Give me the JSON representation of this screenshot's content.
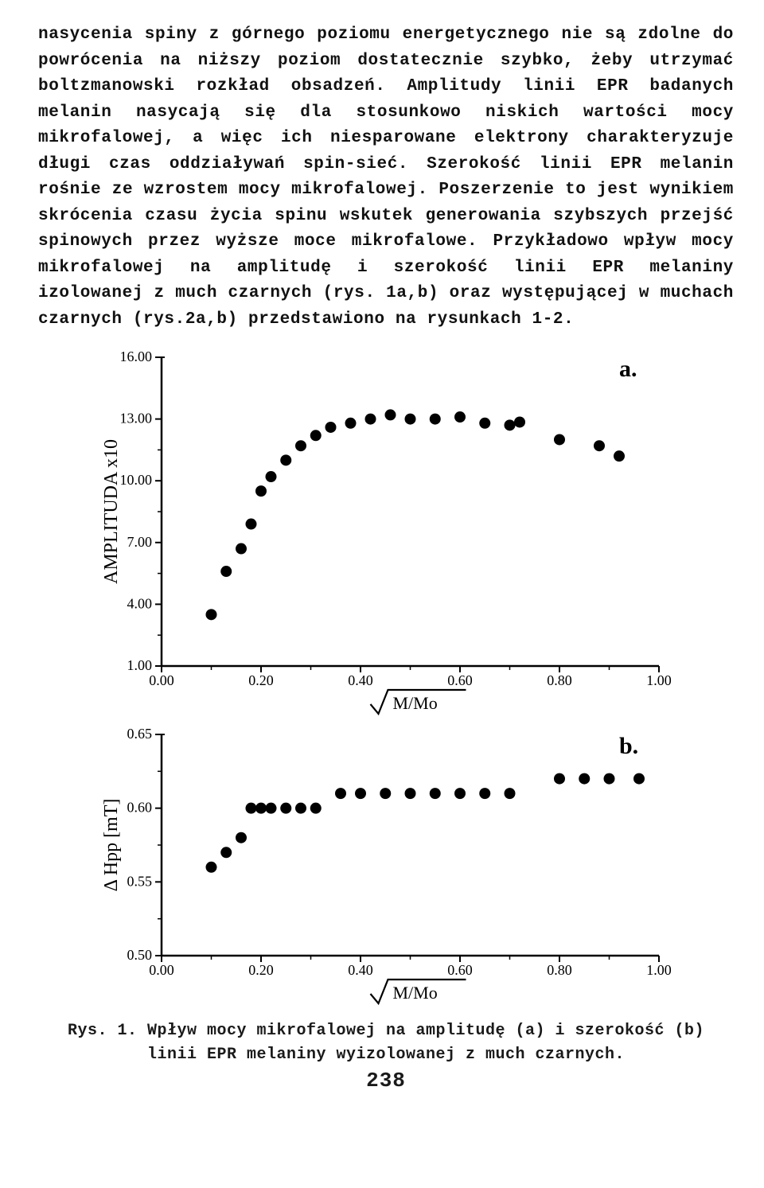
{
  "paragraph": "nasycenia spiny z górnego poziomu energetycznego nie są zdolne do powrócenia na niższy poziom dostatecznie szybko, żeby utrzymać boltzmanowski rozkład obsadzeń. Amplitudy linii EPR badanych melanin nasycają się dla stosunkowo niskich wartości mocy mikrofalowej, a więc ich niesparowane elektrony charakteryzuje długi czas oddziaływań spin-sieć. Szerokość linii EPR melanin rośnie ze wzrostem mocy mikrofalowej. Poszerzenie to jest wynikiem skrócenia czasu życia spinu wskutek generowania szybszych przejść spinowych przez wyższe moce mikrofalowe. Przykładowo wpływ mocy mikrofalowej na amplitudę i szerokość linii EPR melaniny izolowanej z much czarnych (rys. 1a,b) oraz występującej w muchach czarnych (rys.2a,b) przedstawiono na rysunkach 1-2.",
  "caption_line1": "Rys. 1. Wpływ mocy mikrofalowej na amplitudę (a) i szerokość (b)",
  "caption_line2": "linii EPR melaniny wyizolowanej z much czarnych.",
  "page_number": "238",
  "chart_a": {
    "type": "scatter",
    "panel_label": "a.",
    "xlabel_tex": "\\sqrt{M/Mo}",
    "ylabel": "AMPLITUDA x10",
    "xlim": [
      0.0,
      1.0
    ],
    "ylim": [
      1.0,
      16.0
    ],
    "xticks": [
      0.0,
      0.2,
      0.4,
      0.6,
      0.8,
      1.0
    ],
    "yticks": [
      1.0,
      4.0,
      7.0,
      10.0,
      13.0
    ],
    "ytick_top_label": "16.00",
    "xtick_labels": [
      "0.00",
      "0.20",
      "0.40",
      "0.60",
      "0.80",
      "1.00"
    ],
    "ytick_labels": [
      "1.00",
      "4.00",
      "7.00",
      "10.00",
      "13.00",
      "16.00"
    ],
    "marker_color": "#000000",
    "marker_radius": 7,
    "axis_color": "#000000",
    "axis_width": 2.5,
    "background_color": "#ffffff",
    "font_family": "serif",
    "tick_fontsize": 18,
    "label_fontsize": 24,
    "panel_label_fontsize": 30,
    "data": [
      {
        "x": 0.1,
        "y": 3.5
      },
      {
        "x": 0.13,
        "y": 5.6
      },
      {
        "x": 0.16,
        "y": 6.7
      },
      {
        "x": 0.18,
        "y": 7.9
      },
      {
        "x": 0.2,
        "y": 9.5
      },
      {
        "x": 0.22,
        "y": 10.2
      },
      {
        "x": 0.25,
        "y": 11.0
      },
      {
        "x": 0.28,
        "y": 11.7
      },
      {
        "x": 0.31,
        "y": 12.2
      },
      {
        "x": 0.34,
        "y": 12.6
      },
      {
        "x": 0.38,
        "y": 12.8
      },
      {
        "x": 0.42,
        "y": 13.0
      },
      {
        "x": 0.46,
        "y": 13.2
      },
      {
        "x": 0.5,
        "y": 13.0
      },
      {
        "x": 0.55,
        "y": 13.0
      },
      {
        "x": 0.6,
        "y": 13.1
      },
      {
        "x": 0.65,
        "y": 12.8
      },
      {
        "x": 0.7,
        "y": 12.7
      },
      {
        "x": 0.72,
        "y": 12.85
      },
      {
        "x": 0.8,
        "y": 12.0
      },
      {
        "x": 0.88,
        "y": 11.7
      },
      {
        "x": 0.92,
        "y": 11.2
      }
    ]
  },
  "chart_b": {
    "type": "scatter",
    "panel_label": "b.",
    "xlabel_tex": "\\sqrt{M/Mo}",
    "ylabel": "Δ Hpp [mT]",
    "xlim": [
      0.0,
      1.0
    ],
    "ylim": [
      0.5,
      0.65
    ],
    "xticks": [
      0.0,
      0.2,
      0.4,
      0.6,
      0.8,
      1.0
    ],
    "yticks": [
      0.5,
      0.55,
      0.6,
      0.65
    ],
    "xtick_labels": [
      "0.00",
      "0.20",
      "0.40",
      "0.60",
      "0.80",
      "1.00"
    ],
    "ytick_labels": [
      "0.50",
      "0.55",
      "0.60",
      "0.65"
    ],
    "marker_color": "#000000",
    "marker_radius": 7,
    "axis_color": "#000000",
    "axis_width": 2.5,
    "background_color": "#ffffff",
    "font_family": "serif",
    "tick_fontsize": 18,
    "label_fontsize": 24,
    "panel_label_fontsize": 30,
    "data": [
      {
        "x": 0.1,
        "y": 0.56
      },
      {
        "x": 0.13,
        "y": 0.57
      },
      {
        "x": 0.16,
        "y": 0.58
      },
      {
        "x": 0.18,
        "y": 0.6
      },
      {
        "x": 0.2,
        "y": 0.6
      },
      {
        "x": 0.22,
        "y": 0.6
      },
      {
        "x": 0.25,
        "y": 0.6
      },
      {
        "x": 0.28,
        "y": 0.6
      },
      {
        "x": 0.31,
        "y": 0.6
      },
      {
        "x": 0.36,
        "y": 0.61
      },
      {
        "x": 0.4,
        "y": 0.61
      },
      {
        "x": 0.45,
        "y": 0.61
      },
      {
        "x": 0.5,
        "y": 0.61
      },
      {
        "x": 0.55,
        "y": 0.61
      },
      {
        "x": 0.6,
        "y": 0.61
      },
      {
        "x": 0.65,
        "y": 0.61
      },
      {
        "x": 0.7,
        "y": 0.61
      },
      {
        "x": 0.8,
        "y": 0.62
      },
      {
        "x": 0.85,
        "y": 0.62
      },
      {
        "x": 0.9,
        "y": 0.62
      },
      {
        "x": 0.96,
        "y": 0.62
      }
    ]
  }
}
